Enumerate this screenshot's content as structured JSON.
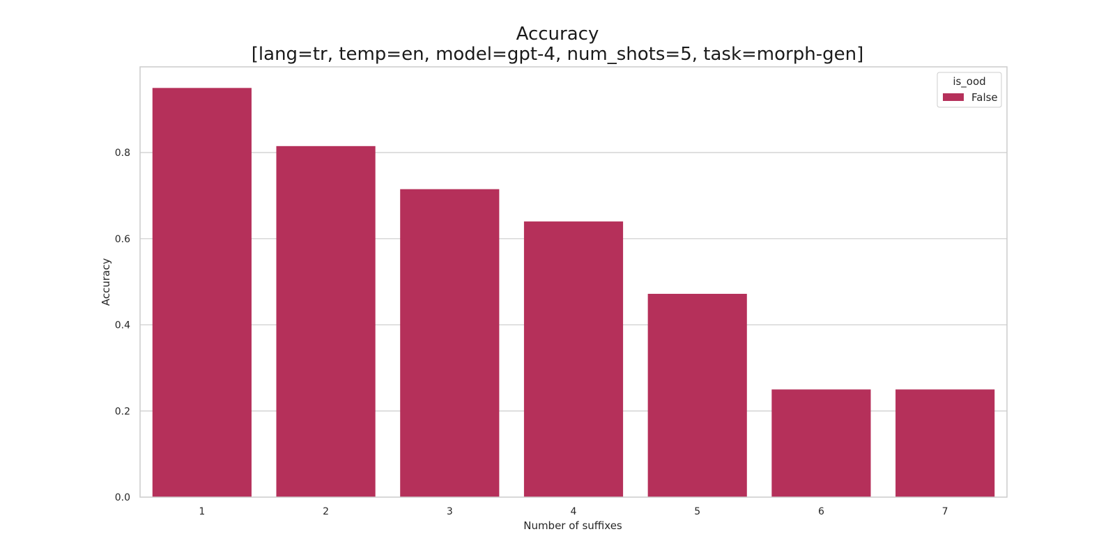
{
  "chart_data": {
    "type": "bar",
    "title": "Accuracy",
    "subtitle": "[lang=tr, temp=en, model=gpt-4, num_shots=5, task=morph-gen]",
    "xlabel": "Number of suffixes",
    "ylabel": "Accuracy",
    "categories": [
      "1",
      "2",
      "3",
      "4",
      "5",
      "6",
      "7"
    ],
    "series": [
      {
        "name": "False",
        "color": "#b5305a",
        "values": [
          0.95,
          0.815,
          0.715,
          0.64,
          0.472,
          0.25,
          0.25
        ]
      }
    ],
    "ylim": [
      0,
      0.999
    ],
    "yticks": [
      "0.0",
      "0.2",
      "0.4",
      "0.6",
      "0.8"
    ],
    "ytick_values": [
      0.0,
      0.2,
      0.4,
      0.6,
      0.8
    ],
    "grid": "horizontal",
    "legend": {
      "title": "is_ood",
      "placement": "top-right"
    },
    "colors": {
      "bar": "#b5305a",
      "grid": "#cccccc",
      "frame": "#cccccc",
      "text": "#262626"
    }
  }
}
